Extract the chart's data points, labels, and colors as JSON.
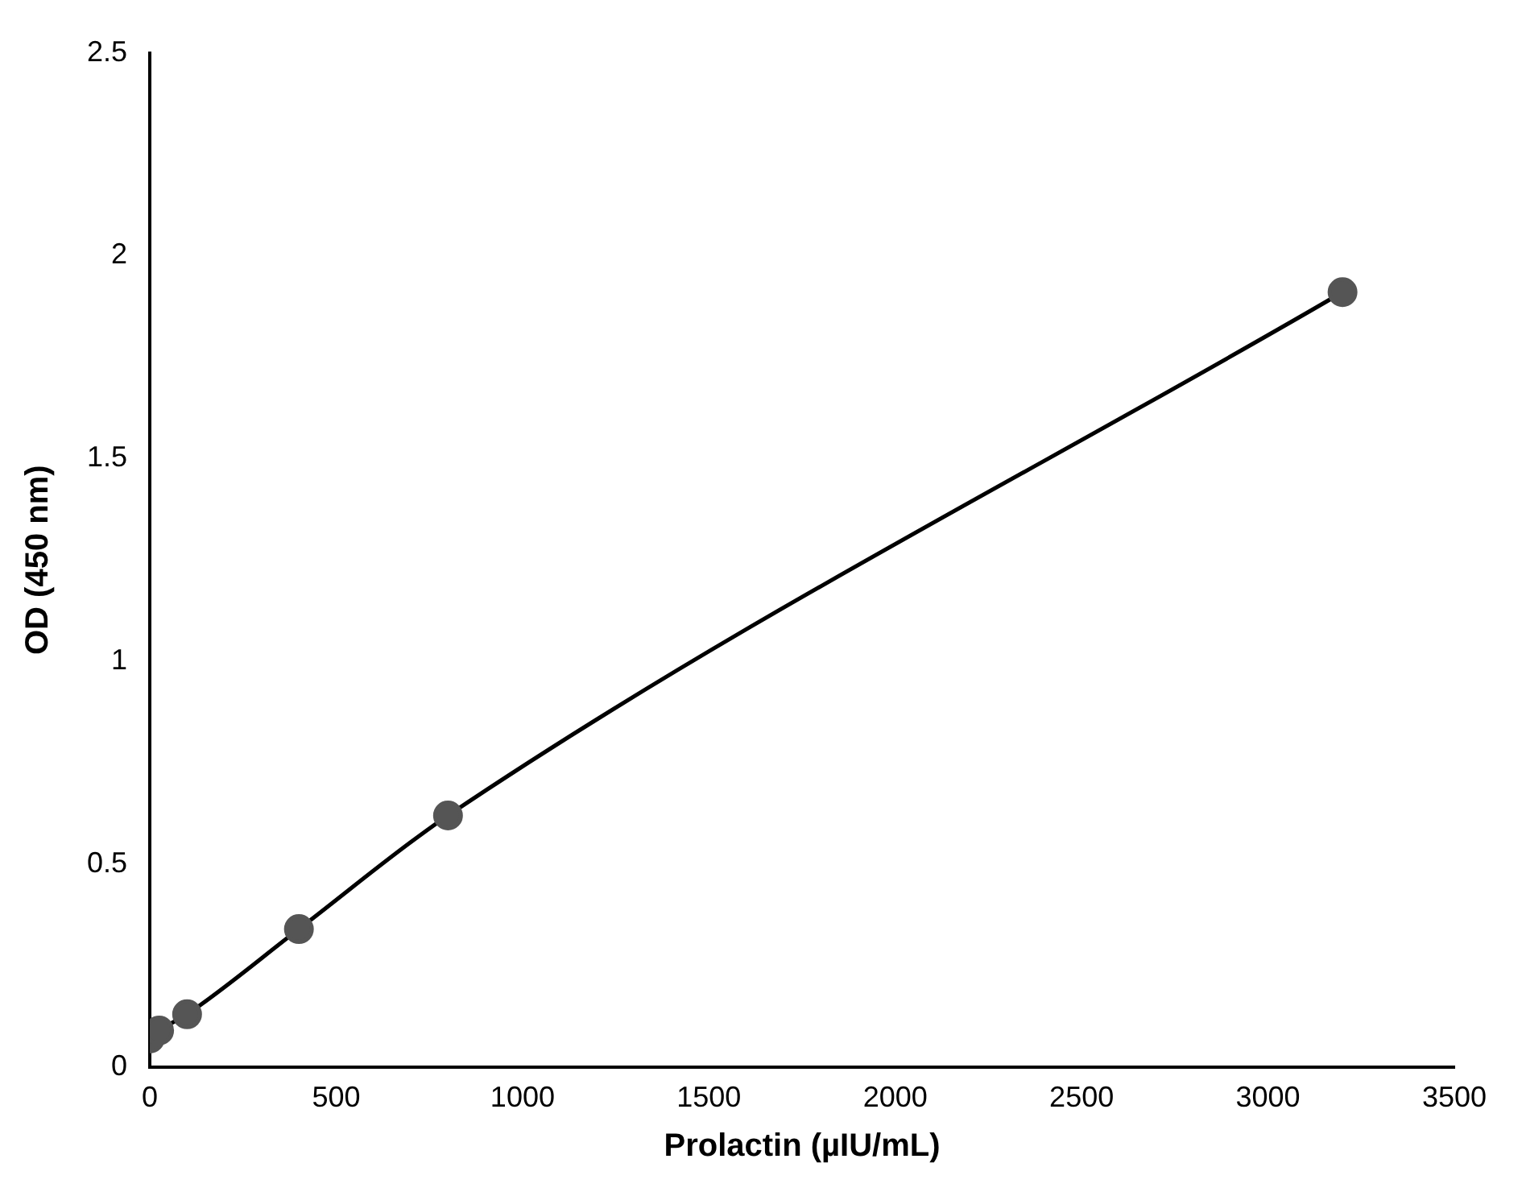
{
  "chart_data": {
    "type": "line",
    "xlabel": "Prolactin (µIU/mL)",
    "ylabel": "OD (450 nm)",
    "x": [
      0,
      25,
      100,
      400,
      800,
      3200
    ],
    "series": [
      {
        "color": "#555555",
        "values": [
          0.07,
          0.09,
          0.13,
          0.34,
          0.62,
          1.91
        ]
      }
    ],
    "xlim": [
      0,
      3500
    ],
    "xticks": [
      0,
      500,
      1000,
      1500,
      2000,
      2500,
      3000,
      3500
    ],
    "ylim": [
      0,
      2.5
    ],
    "yticks": [
      0,
      0.5,
      1,
      1.5,
      2,
      2.5
    ],
    "grid": false,
    "legend": false,
    "marker": "circle",
    "line_style": "solid"
  }
}
